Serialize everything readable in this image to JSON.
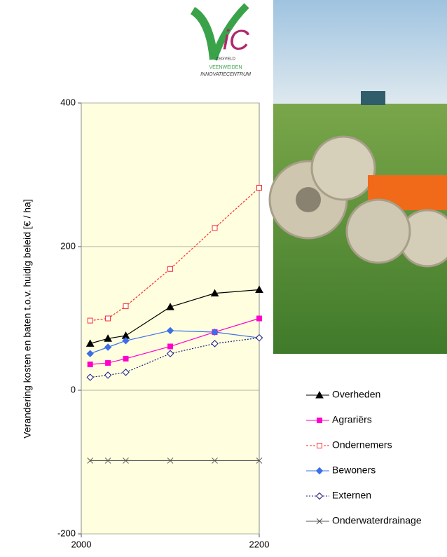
{
  "logo": {
    "place": "ZEGVELD",
    "line1": "VEENWEIDEN",
    "line2": "INNOVATIECENTRUM"
  },
  "chart_data": {
    "type": "line",
    "y_label": "Verandering kosten en baten t.o.v. huidig beleid [€ / ha]",
    "x": [
      2010,
      2030,
      2050,
      2100,
      2150,
      2200
    ],
    "xlim": [
      2000,
      2200
    ],
    "xticks": [
      2000,
      2200
    ],
    "ylim": [
      -200,
      400
    ],
    "yticks": [
      -200,
      0,
      200,
      400
    ],
    "grid": true,
    "series": [
      {
        "name": "Overheden",
        "color": "#000000",
        "marker": "triangle",
        "filled": true,
        "dash": "",
        "values": [
          65,
          72,
          76,
          116,
          135,
          140
        ]
      },
      {
        "name": "Agrariërs",
        "color": "#ff00cc",
        "marker": "square",
        "filled": true,
        "dash": "",
        "values": [
          36,
          38,
          44,
          61,
          81,
          100
        ]
      },
      {
        "name": "Ondernemers",
        "color": "#ff2a2a",
        "marker": "square",
        "filled": false,
        "dash": "3,2",
        "values": [
          97,
          100,
          117,
          169,
          226,
          282
        ]
      },
      {
        "name": "Bewoners",
        "color": "#3a6fe8",
        "marker": "diamond",
        "filled": true,
        "dash": "",
        "values": [
          51,
          60,
          69,
          83,
          81,
          73
        ]
      },
      {
        "name": "Externen",
        "color": "#1a1a7a",
        "marker": "diamond",
        "filled": false,
        "dash": "2,2",
        "values": [
          18,
          21,
          25,
          51,
          65,
          73
        ]
      },
      {
        "name": "Onderwaterdrainage",
        "color": "#555555",
        "marker": "x",
        "filled": false,
        "dash": "",
        "values": [
          -98,
          -98,
          -98,
          -98,
          -98,
          -98
        ]
      }
    ]
  }
}
